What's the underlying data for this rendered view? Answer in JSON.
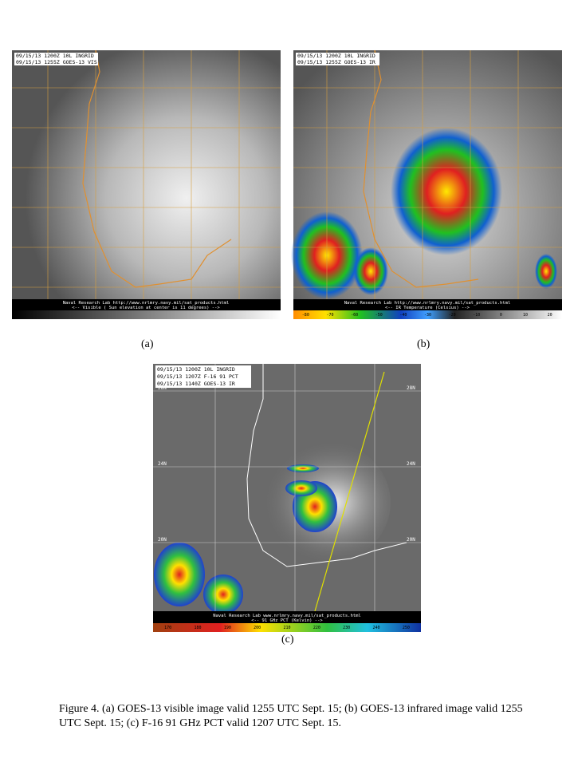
{
  "panels": [
    {
      "header": [
        "09/15/13 1200Z  10L INGRID",
        "09/15/13 1255Z  GOES-13 VIS"
      ],
      "footer": [
        "Naval Research Lab http://www.nrlmry.navy.mil/sat_products.html",
        "<--   Visible ( Sun elevation at center is 11 degrees)   -->"
      ],
      "label": "(a)"
    },
    {
      "header": [
        "09/15/13 1200Z  10L INGRID",
        "09/15/13 1255Z  GOES-13 IR"
      ],
      "footer": [
        "Naval Research Lab http://www.nrlmry.navy.mil/sat_products.html",
        "<--   IR Temperature (Celsius)   -->"
      ],
      "colorbar": [
        "-80",
        "-70",
        "-60",
        "-50",
        "-40",
        "-30",
        "-20",
        "-10",
        "0",
        "10",
        "20"
      ],
      "label": "(b)"
    },
    {
      "header": [
        "09/15/13 1200Z 10L INGRID",
        "09/15/13 1207Z F-16 91 PCT",
        "09/15/13 1140Z GOES-13 IR"
      ],
      "latitudes": [
        "28N",
        "24N",
        "20N"
      ],
      "footer": [
        "Naval Research Lab   www.nrlmry.navy.mil/sat_products.html",
        "<--   91 GHz PCT (Kelvin)   -->"
      ],
      "colorbar": [
        "170",
        "180",
        "190",
        "200",
        "210",
        "220",
        "230",
        "240",
        "250"
      ],
      "label": "(c)"
    }
  ],
  "caption": "Figure 4. (a) GOES-13 visible image valid 1255 UTC Sept. 15; (b) GOES-13 infrared image valid 1255 UTC Sept. 15; (c) F-16 91 GHz PCT valid 1207 UTC Sept. 15."
}
